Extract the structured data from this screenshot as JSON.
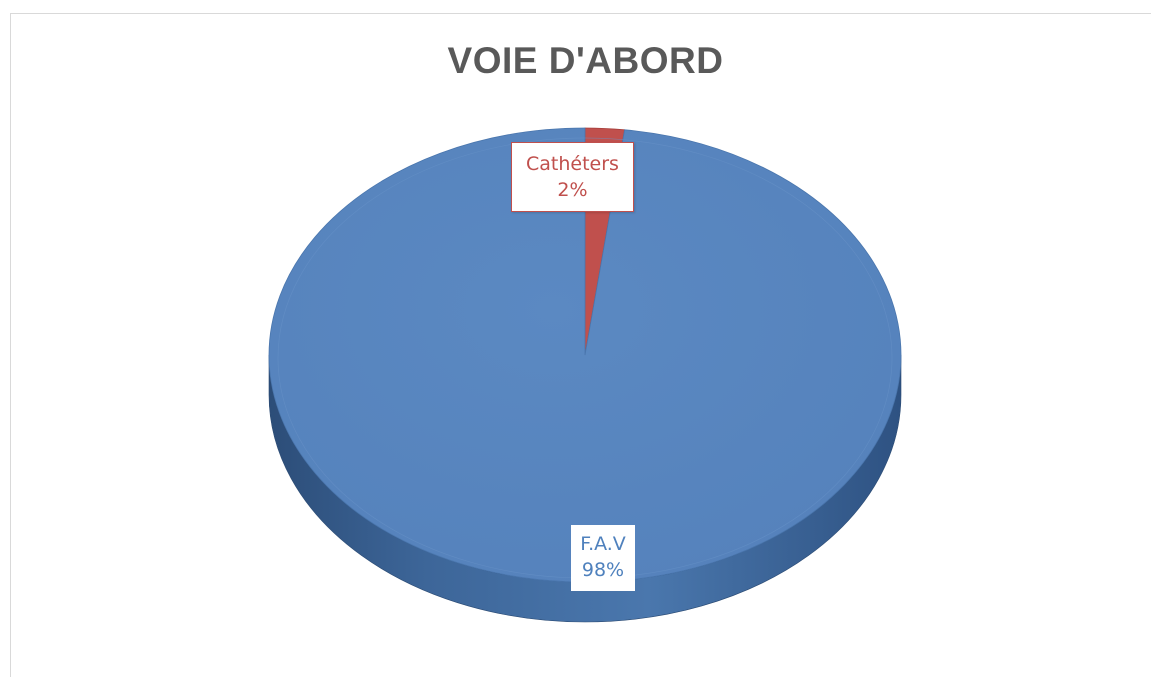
{
  "chart_data": {
    "type": "pie",
    "title": "VOIE D'ABORD",
    "style": "3d",
    "categories": [
      "Cathéters",
      "F.A.V"
    ],
    "values": [
      2,
      98
    ],
    "value_labels": [
      "2%",
      "98%"
    ],
    "colors": [
      "#c0504d",
      "#4f81bd"
    ],
    "legend": "none"
  }
}
